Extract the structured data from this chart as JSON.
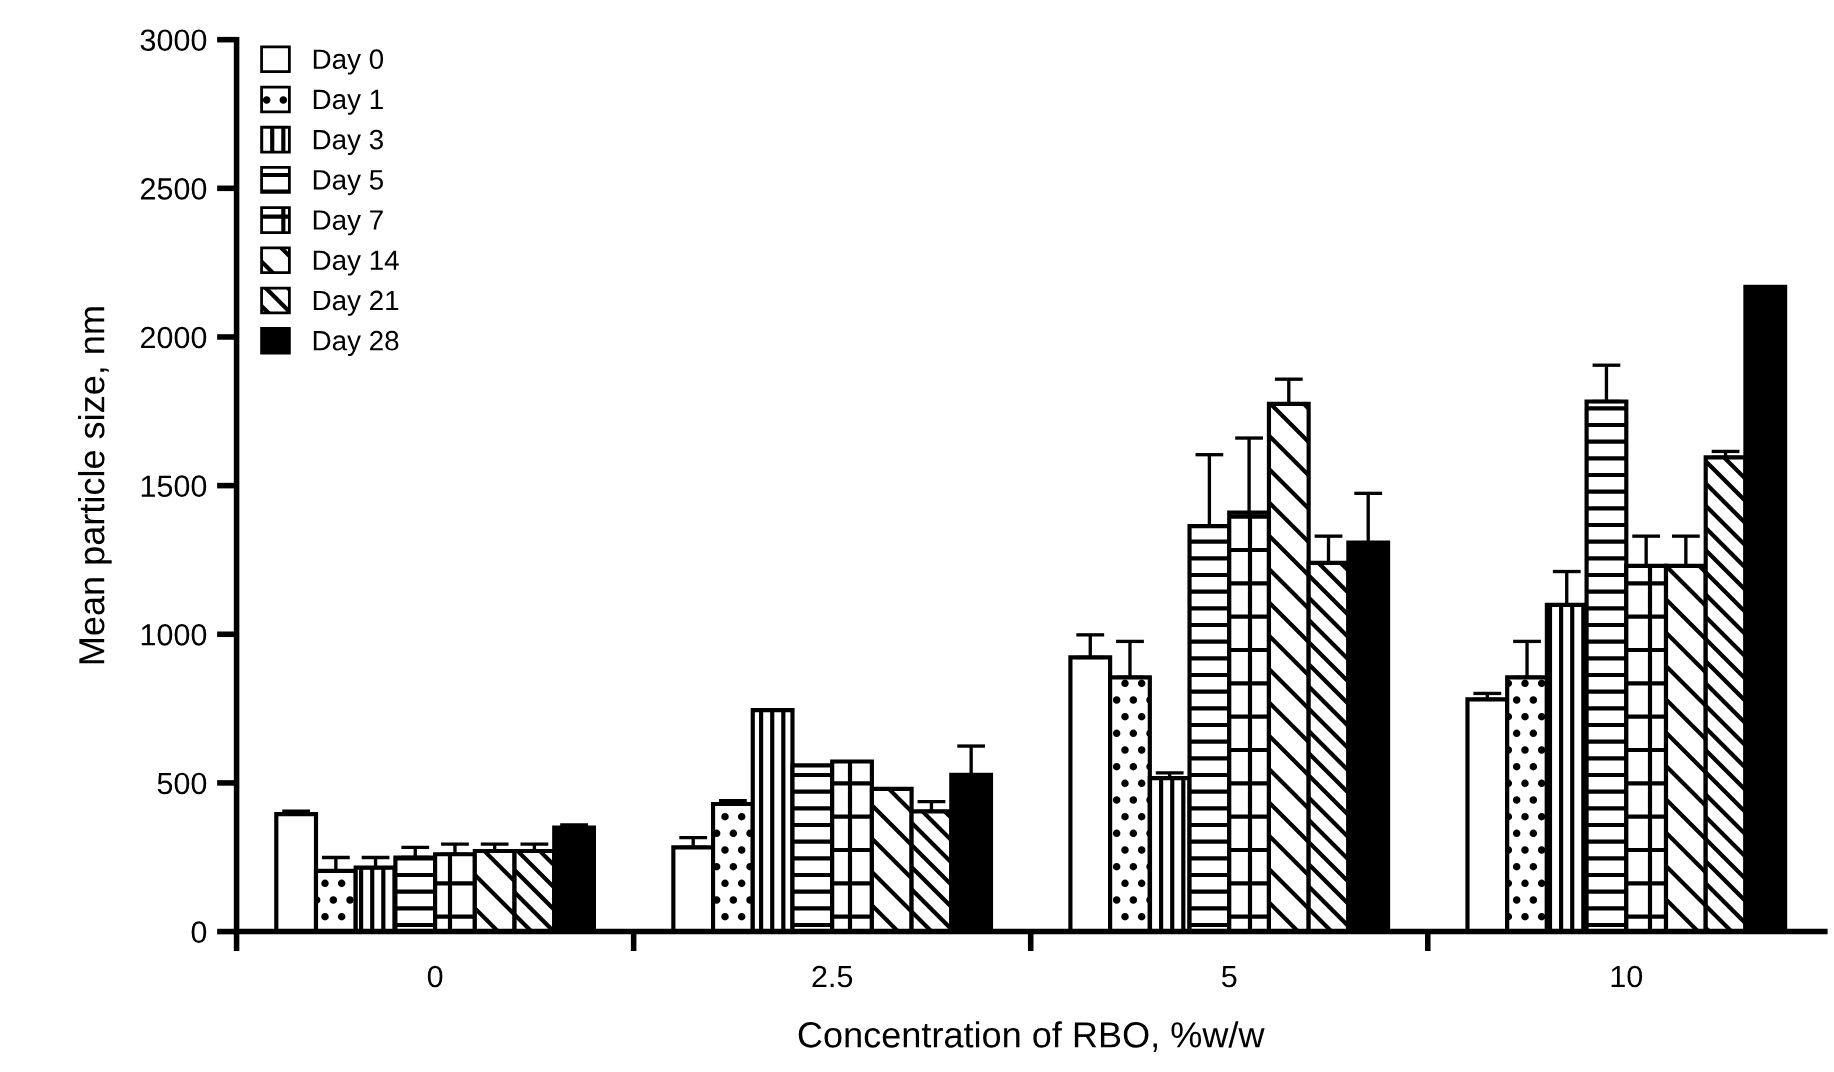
{
  "chart_data": {
    "type": "bar",
    "xlabel": "Concentration of RBO, %w/w",
    "ylabel": "Mean particle size, nm",
    "categories": [
      "0",
      "2.5",
      "5",
      "10"
    ],
    "ylim": [
      0,
      3000
    ],
    "yticks": [
      0,
      500,
      1000,
      1500,
      2000,
      2500,
      3000
    ],
    "grid": false,
    "legend": "top left",
    "series": [
      {
        "name": "Day 0",
        "color": "#ffffff",
        "values": [
          395,
          283,
          922,
          781
        ],
        "errors": [
          10,
          33,
          76,
          20
        ]
      },
      {
        "name": "Day 1",
        "color": "#000000",
        "values": [
          204,
          429,
          855,
          855
        ],
        "errors": [
          45,
          11,
          121,
          121
        ]
      },
      {
        "name": "Day 3",
        "color": "#000000",
        "values": [
          215,
          745,
          516,
          1099
        ],
        "errors": [
          34,
          null,
          18,
          112
        ]
      },
      {
        "name": "Day 5",
        "color": "#000000",
        "values": [
          249,
          559,
          1364,
          1783
        ],
        "errors": [
          34,
          null,
          240,
          122
        ]
      },
      {
        "name": "Day 7",
        "color": "#000000",
        "values": [
          260,
          572,
          1409,
          1230
        ],
        "errors": [
          34,
          null,
          251,
          100
        ]
      },
      {
        "name": "Day 14",
        "color": "#000000",
        "values": [
          271,
          480,
          1775,
          1230
        ],
        "errors": [
          23,
          null,
          83,
          100
        ]
      },
      {
        "name": "Day 21",
        "color": "#000000",
        "values": [
          271,
          404,
          1240,
          1595
        ],
        "errors": [
          23,
          33,
          90,
          20
        ]
      },
      {
        "name": "Day 28",
        "color": "#000000",
        "values": [
          350,
          527,
          1308,
          2169
        ],
        "errors": [
          9,
          97,
          166,
          null
        ]
      }
    ]
  }
}
